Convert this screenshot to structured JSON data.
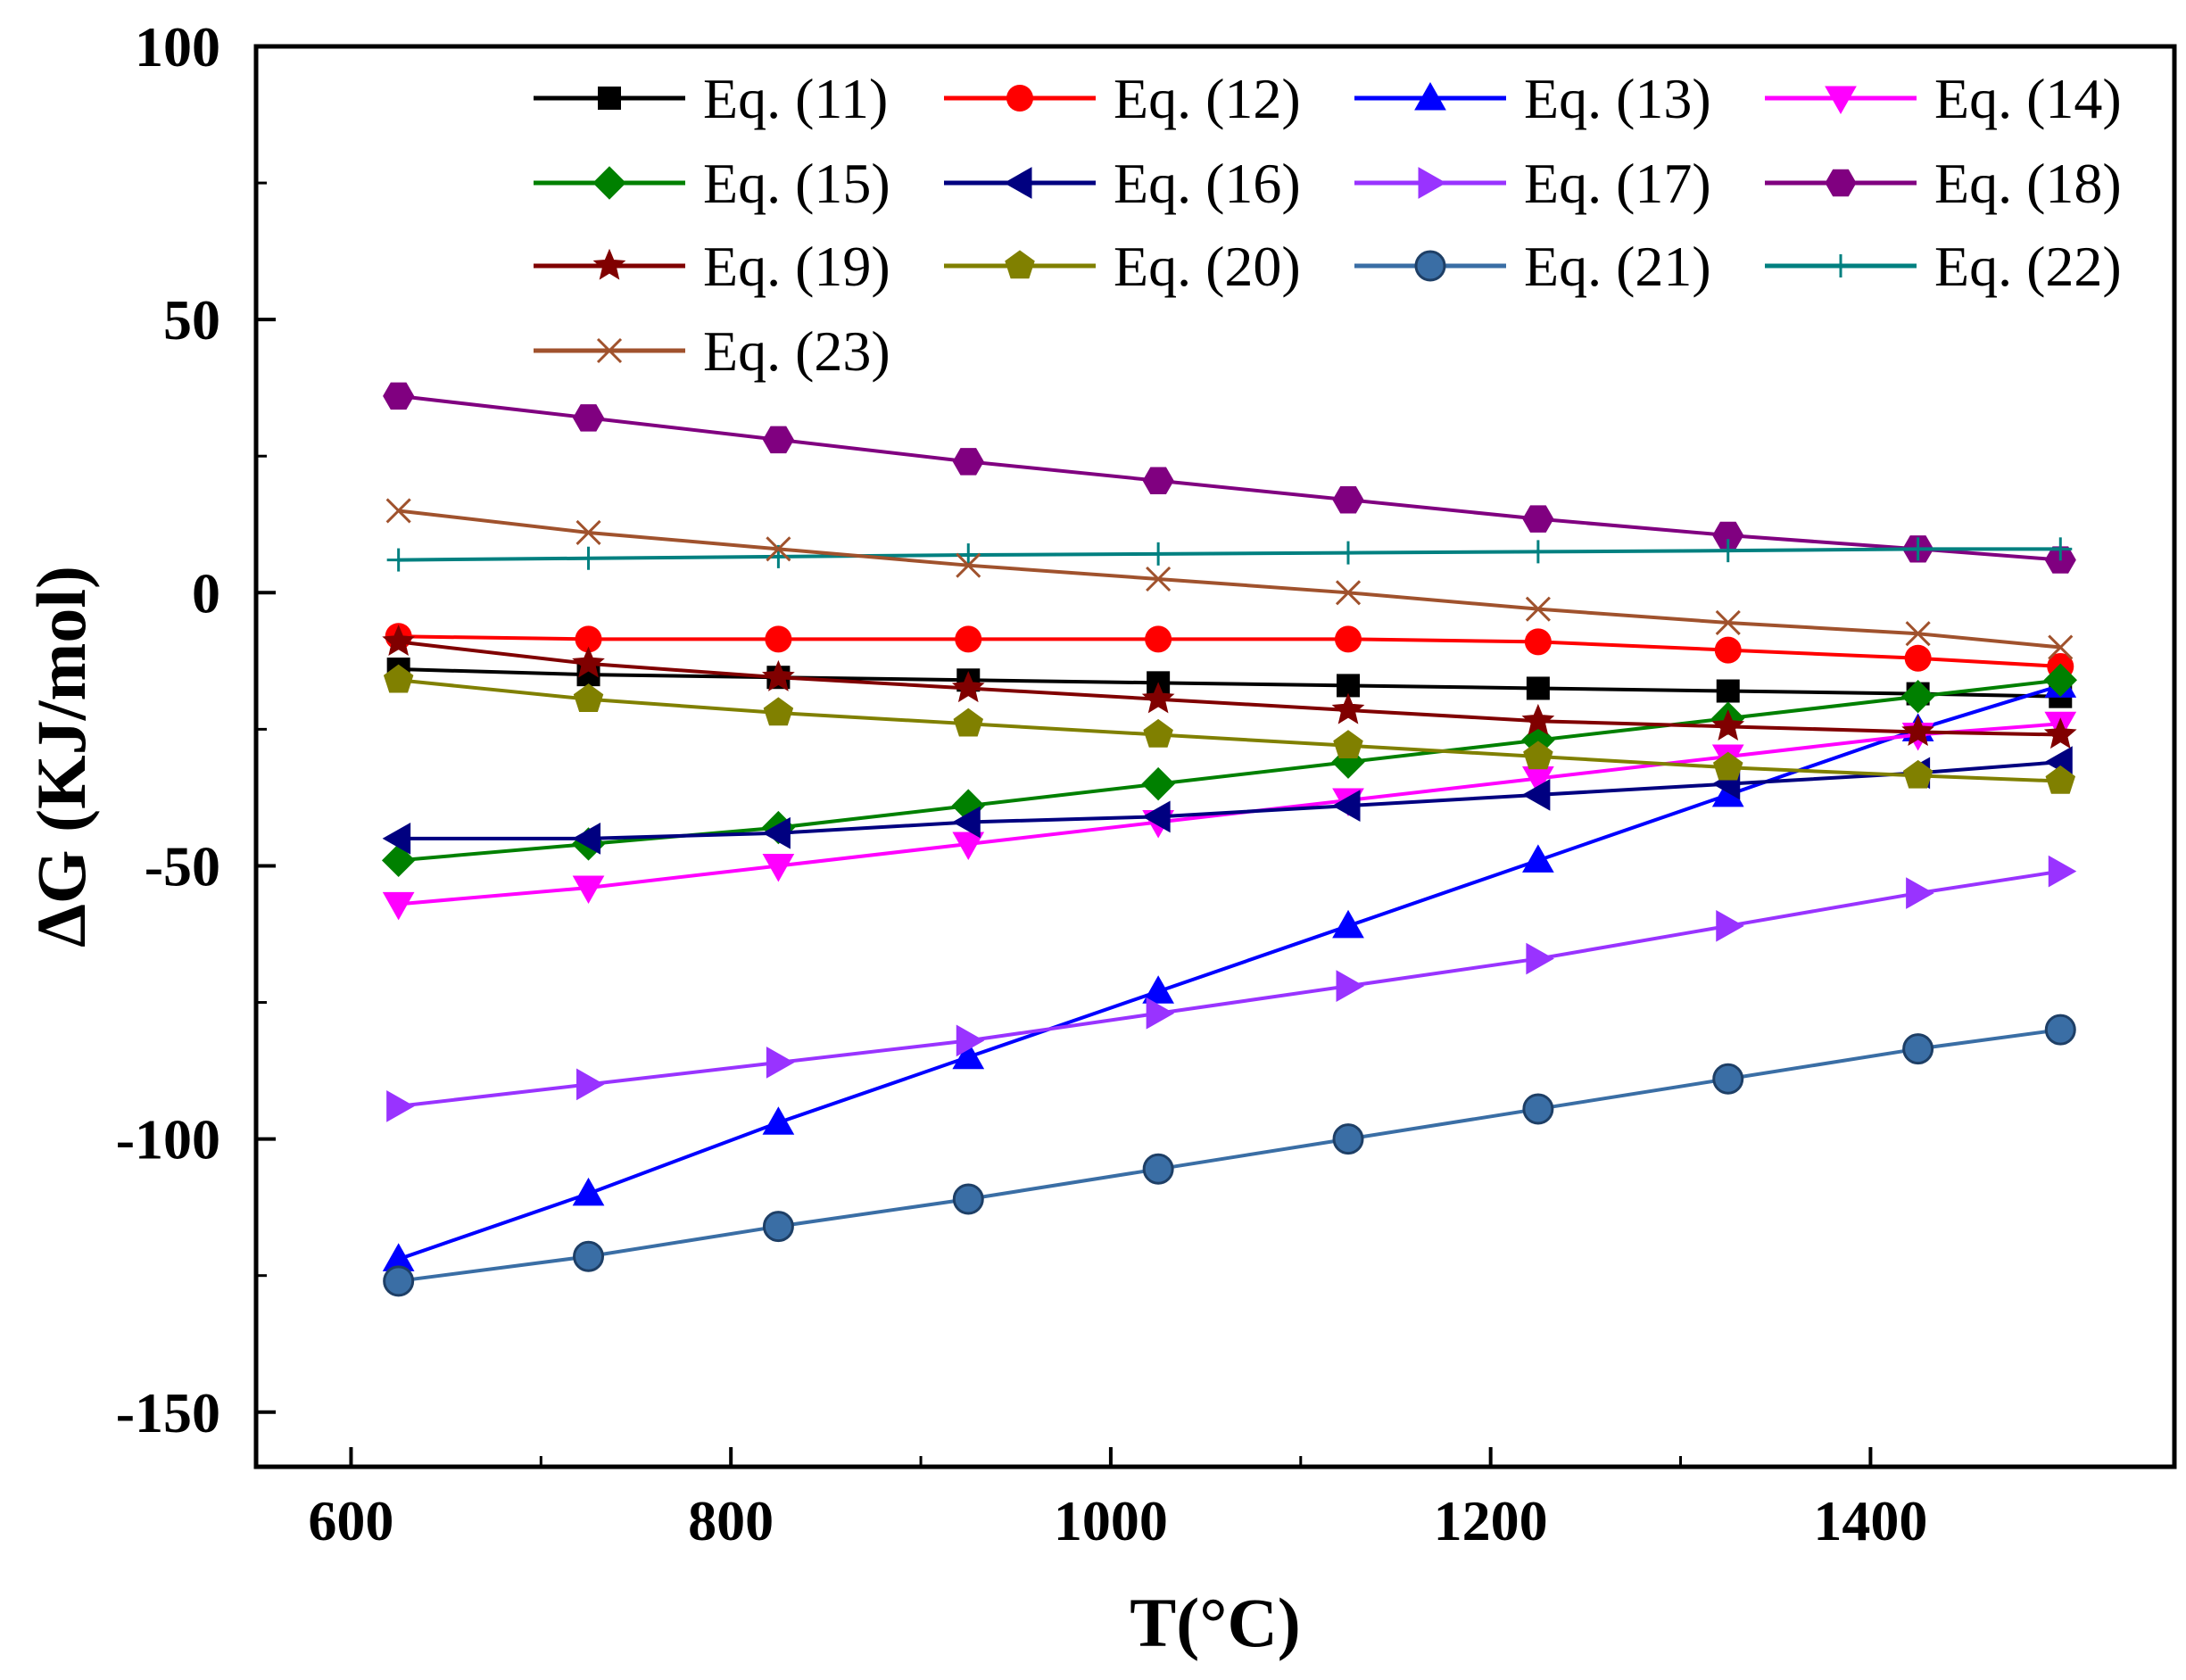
{
  "chart_data": {
    "type": "line",
    "xlabel": "T(°C)",
    "ylabel": "ΔG (KJ/mol)",
    "xlim": [
      550,
      1560
    ],
    "ylim": [
      -160,
      100
    ],
    "xticks": [
      600,
      800,
      1000,
      1200,
      1400
    ],
    "yticks": [
      100,
      50,
      0,
      -50,
      -100,
      -150
    ],
    "grid": false,
    "legend_position": "top-right",
    "x": [
      625,
      725,
      825,
      925,
      1025,
      1125,
      1225,
      1325,
      1425,
      1500
    ],
    "series": [
      {
        "name": "Eq. (11)",
        "color": "#000000",
        "marker": "square",
        "values": [
          -14,
          -15,
          -15.5,
          -16,
          -16.5,
          -17,
          -17.5,
          -18,
          -18.5,
          -19
        ]
      },
      {
        "name": "Eq. (12)",
        "color": "#ff0000",
        "marker": "circle",
        "values": [
          -8,
          -8.5,
          -8.5,
          -8.5,
          -8.5,
          -8.5,
          -9,
          -10.5,
          -12,
          -13.5
        ]
      },
      {
        "name": "Eq. (13)",
        "color": "#0000ff",
        "marker": "triangle-up",
        "values": [
          -122,
          -110,
          -97,
          -85,
          -73,
          -61,
          -49,
          -37,
          -25,
          -17
        ]
      },
      {
        "name": "Eq. (14)",
        "color": "#ff00ff",
        "marker": "triangle-down",
        "values": [
          -57,
          -54,
          -50,
          -46,
          -42,
          -38,
          -34,
          -30,
          -26,
          -24
        ]
      },
      {
        "name": "Eq. (15)",
        "color": "#008000",
        "marker": "diamond",
        "values": [
          -49,
          -46,
          -43,
          -39,
          -35,
          -31,
          -27,
          -23,
          -19,
          -16
        ]
      },
      {
        "name": "Eq. (16)",
        "color": "#000080",
        "marker": "triangle-left",
        "values": [
          -45,
          -45,
          -44,
          -42,
          -41,
          -39,
          -37,
          -35,
          -33,
          -31
        ]
      },
      {
        "name": "Eq. (17)",
        "color": "#9933ff",
        "marker": "triangle-right",
        "values": [
          -94,
          -90,
          -86,
          -82,
          -77,
          -72,
          -67,
          -61,
          -55,
          -51
        ]
      },
      {
        "name": "Eq. (18)",
        "color": "#800080",
        "marker": "hexagon",
        "values": [
          36,
          32,
          28,
          24,
          20.5,
          17,
          13.5,
          10.5,
          8,
          6
        ]
      },
      {
        "name": "Eq. (19)",
        "color": "#800000",
        "marker": "star",
        "values": [
          -9,
          -13,
          -15.5,
          -17.5,
          -19.5,
          -21.5,
          -23.5,
          -24.5,
          -25.5,
          -26
        ]
      },
      {
        "name": "Eq. (20)",
        "color": "#808000",
        "marker": "pentagon",
        "values": [
          -16,
          -19.5,
          -22,
          -24,
          -26,
          -28,
          -30,
          -32,
          -33.5,
          -34.5
        ]
      },
      {
        "name": "Eq. (21)",
        "color": "#3a6ea5",
        "marker": "sphere",
        "values": [
          -126,
          -121.5,
          -116,
          -111,
          -105.5,
          -100,
          -94.5,
          -89,
          -83.5,
          -80
        ]
      },
      {
        "name": "Eq. (22)",
        "color": "#008080",
        "marker": "plus",
        "values": [
          6,
          6.3,
          6.6,
          6.9,
          7.1,
          7.3,
          7.5,
          7.7,
          8,
          8
        ]
      },
      {
        "name": "Eq. (23)",
        "color": "#a0522d",
        "marker": "x",
        "values": [
          15,
          11,
          8,
          5,
          2.5,
          0,
          -3,
          -5.5,
          -7.5,
          -10
        ]
      }
    ]
  }
}
